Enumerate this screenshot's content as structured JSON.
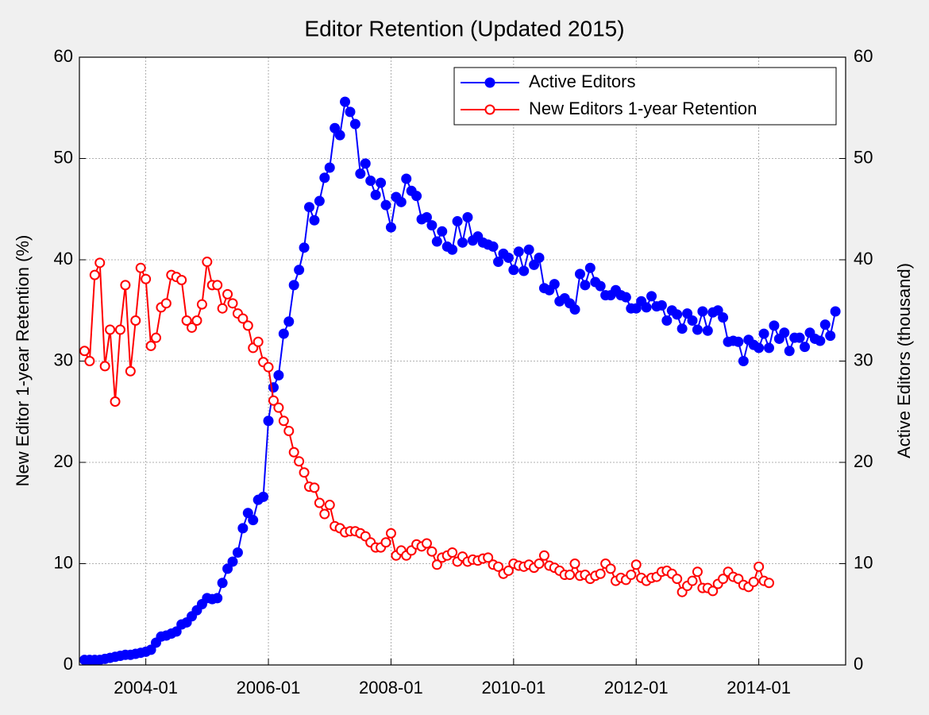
{
  "chart_data": {
    "type": "line",
    "title": "Editor Retention (Updated 2015)",
    "ylabel": "New Editor 1-year Retention (%)",
    "y2label": "Active Editors (thousand)",
    "x": [
      "2003-01",
      "2003-02",
      "2003-03",
      "2003-04",
      "2003-05",
      "2003-06",
      "2003-07",
      "2003-08",
      "2003-09",
      "2003-10",
      "2003-11",
      "2003-12",
      "2004-01",
      "2004-02",
      "2004-03",
      "2004-04",
      "2004-05",
      "2004-06",
      "2004-07",
      "2004-08",
      "2004-09",
      "2004-10",
      "2004-11",
      "2004-12",
      "2005-01",
      "2005-02",
      "2005-03",
      "2005-04",
      "2005-05",
      "2005-06",
      "2005-07",
      "2005-08",
      "2005-09",
      "2005-10",
      "2005-11",
      "2005-12",
      "2006-01",
      "2006-02",
      "2006-03",
      "2006-04",
      "2006-05",
      "2006-06",
      "2006-07",
      "2006-08",
      "2006-09",
      "2006-10",
      "2006-11",
      "2006-12",
      "2007-01",
      "2007-02",
      "2007-03",
      "2007-04",
      "2007-05",
      "2007-06",
      "2007-07",
      "2007-08",
      "2007-09",
      "2007-10",
      "2007-11",
      "2007-12",
      "2008-01",
      "2008-02",
      "2008-03",
      "2008-04",
      "2008-05",
      "2008-06",
      "2008-07",
      "2008-08",
      "2008-09",
      "2008-10",
      "2008-11",
      "2008-12",
      "2009-01",
      "2009-02",
      "2009-03",
      "2009-04",
      "2009-05",
      "2009-06",
      "2009-07",
      "2009-08",
      "2009-09",
      "2009-10",
      "2009-11",
      "2009-12",
      "2010-01",
      "2010-02",
      "2010-03",
      "2010-04",
      "2010-05",
      "2010-06",
      "2010-07",
      "2010-08",
      "2010-09",
      "2010-10",
      "2010-11",
      "2010-12",
      "2011-01",
      "2011-02",
      "2011-03",
      "2011-04",
      "2011-05",
      "2011-06",
      "2011-07",
      "2011-08",
      "2011-09",
      "2011-10",
      "2011-11",
      "2011-12",
      "2012-01",
      "2012-02",
      "2012-03",
      "2012-04",
      "2012-05",
      "2012-06",
      "2012-07",
      "2012-08",
      "2012-09",
      "2012-10",
      "2012-11",
      "2012-12",
      "2013-01",
      "2013-02",
      "2013-03",
      "2013-04",
      "2013-05",
      "2013-06",
      "2013-07",
      "2013-08",
      "2013-09",
      "2013-10",
      "2013-11",
      "2013-12",
      "2014-01",
      "2014-02",
      "2014-03",
      "2014-04",
      "2014-05",
      "2014-06",
      "2014-07",
      "2014-08",
      "2014-09",
      "2014-10",
      "2014-11",
      "2014-12",
      "2015-01",
      "2015-02",
      "2015-03",
      "2015-04"
    ],
    "series": [
      {
        "name": "Active Editors",
        "color": "#0000ff",
        "marker": "filled",
        "axis": "y2",
        "values": [
          0.5,
          0.5,
          0.5,
          0.5,
          0.6,
          0.7,
          0.8,
          0.9,
          1.0,
          1.0,
          1.1,
          1.2,
          1.3,
          1.5,
          2.2,
          2.8,
          2.9,
          3.1,
          3.3,
          4.0,
          4.2,
          4.8,
          5.4,
          6.0,
          6.6,
          6.5,
          6.6,
          8.1,
          9.5,
          10.2,
          11.1,
          13.5,
          15.0,
          14.3,
          16.3,
          16.6,
          24.1,
          27.4,
          28.6,
          32.7,
          33.9,
          37.5,
          39.0,
          41.2,
          45.2,
          43.9,
          45.8,
          48.1,
          49.1,
          53.0,
          52.3,
          55.6,
          54.6,
          53.4,
          48.5,
          49.5,
          47.8,
          46.4,
          47.6,
          45.4,
          43.2,
          46.2,
          45.7,
          48.0,
          46.8,
          46.3,
          44.0,
          44.2,
          43.4,
          41.8,
          42.8,
          41.3,
          41.0,
          43.8,
          41.7,
          44.2,
          41.9,
          42.3,
          41.7,
          41.5,
          41.3,
          39.8,
          40.6,
          40.2,
          39.0,
          40.8,
          38.9,
          41.0,
          39.5,
          40.2,
          37.2,
          37.0,
          37.6,
          35.9,
          36.2,
          35.7,
          35.1,
          38.6,
          37.5,
          39.2,
          37.8,
          37.4,
          36.5,
          36.5,
          37.0,
          36.5,
          36.3,
          35.2,
          35.2,
          35.9,
          35.3,
          36.4,
          35.4,
          35.5,
          34.0,
          35.0,
          34.6,
          33.2,
          34.7,
          34.0,
          33.1,
          34.9,
          33.0,
          34.8,
          35.0,
          34.3,
          31.9,
          32.0,
          31.9,
          30.0,
          32.1,
          31.6,
          31.3,
          32.7,
          31.3,
          33.5,
          32.2,
          32.8,
          31.0,
          32.3,
          32.3,
          31.4,
          32.8,
          32.2,
          32.0,
          33.6,
          32.5,
          34.9
        ]
      },
      {
        "name": "New Editors 1-year Retention",
        "color": "#ff0000",
        "marker": "open",
        "axis": "y",
        "values": [
          31,
          30,
          38.5,
          39.7,
          29.5,
          33.1,
          26,
          33.1,
          37.5,
          29,
          34,
          39.2,
          38.1,
          31.5,
          32.3,
          35.3,
          35.7,
          38.5,
          38.3,
          38,
          34,
          33.3,
          34,
          35.6,
          39.8,
          37.5,
          37.5,
          35.2,
          36.6,
          35.7,
          34.7,
          34.2,
          33.5,
          31.3,
          31.9,
          29.9,
          29.4,
          26.1,
          25.4,
          24.1,
          23.1,
          21,
          20.1,
          19,
          17.6,
          17.5,
          16,
          14.9,
          15.8,
          13.7,
          13.5,
          13.1,
          13.2,
          13.2,
          13,
          12.7,
          12.1,
          11.6,
          11.6,
          12.1,
          13,
          10.8,
          11.3,
          10.8,
          11.3,
          11.9,
          11.7,
          12,
          11.2,
          9.9,
          10.6,
          10.8,
          11.1,
          10.2,
          10.7,
          10.2,
          10.4,
          10.3,
          10.5,
          10.6,
          9.9,
          9.7,
          9,
          9.3,
          10,
          9.8,
          9.7,
          9.9,
          9.6,
          10,
          10.8,
          9.8,
          9.6,
          9.3,
          8.9,
          8.9,
          10,
          8.8,
          8.9,
          8.5,
          8.8,
          9,
          10,
          9.5,
          8.3,
          8.6,
          8.4,
          8.9,
          9.9,
          8.6,
          8.3,
          8.6,
          8.7,
          9.2,
          9.3,
          9,
          8.5,
          7.2,
          7.8,
          8.3,
          9.2,
          7.6,
          7.6,
          7.3,
          8,
          8.5,
          9.2,
          8.7,
          8.5,
          7.9,
          7.7,
          8.2,
          9.7,
          8.3,
          8.1,
          null,
          null,
          null,
          null,
          null,
          null,
          null,
          null,
          null,
          null,
          null,
          null,
          null
        ]
      }
    ],
    "xlim": [
      "2002-12",
      "2015-06"
    ],
    "xticks": [
      "2004-01",
      "2006-01",
      "2008-01",
      "2010-01",
      "2012-01",
      "2014-01"
    ],
    "ylim": [
      0,
      60
    ],
    "yticks": [
      0,
      10,
      20,
      30,
      40,
      50,
      60
    ],
    "y2lim": [
      0,
      60
    ],
    "y2ticks": [
      0,
      10,
      20,
      30,
      40,
      50,
      60
    ],
    "grid": true,
    "legend": "upper right"
  }
}
